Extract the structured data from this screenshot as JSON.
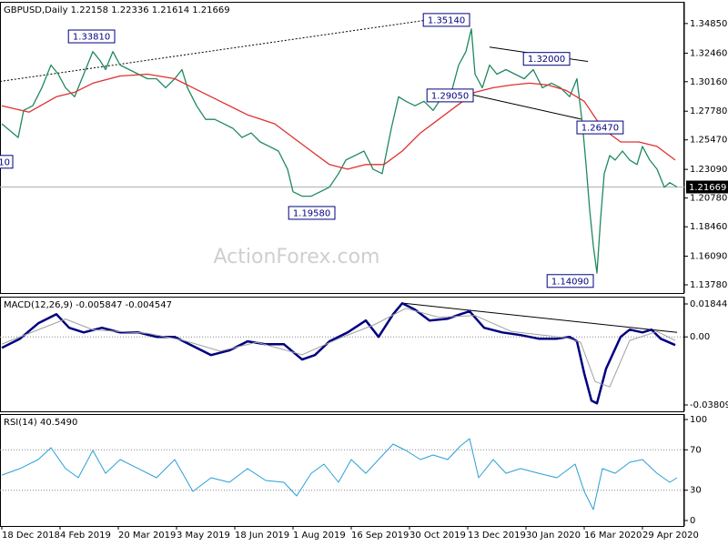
{
  "chart_data": [
    {
      "type": "line",
      "title": "GBPUSD,Daily 1.22158 1.22336 1.21614 1.21669",
      "xlim": [
        -1,
        375
      ],
      "ylim": [
        1.366,
        1.1312
      ],
      "yticks": [
        {
          "value": 1.3485,
          "label": "1.34850"
        },
        {
          "value": 1.3246,
          "label": "1.32460"
        },
        {
          "value": 1.3016,
          "label": "1.30160"
        },
        {
          "value": 1.2778,
          "label": "1.27780"
        },
        {
          "value": 1.2547,
          "label": "1.25470"
        },
        {
          "value": 1.2309,
          "label": "1.23090"
        },
        {
          "value": 1.2078,
          "label": "1.20780"
        },
        {
          "value": 1.1846,
          "label": "1.18460"
        },
        {
          "value": 1.1609,
          "label": "1.16090"
        },
        {
          "value": 1.1378,
          "label": "1.13780"
        }
      ],
      "series": [
        {
          "color": "#1e8a5e",
          "x": [
            0,
            9,
            12,
            17,
            22,
            27,
            31,
            35,
            40,
            45,
            50,
            54,
            57,
            61,
            65,
            70,
            75,
            80,
            85,
            90,
            95,
            99,
            102,
            107,
            112,
            117,
            122,
            127,
            132,
            137,
            142,
            147,
            152,
            157,
            160,
            165,
            170,
            175,
            180,
            185,
            189,
            194,
            199,
            204,
            209,
            214,
            218,
            222,
            227,
            232,
            237,
            242,
            247,
            251,
            255,
            258,
            260,
            264,
            268,
            272,
            277,
            282,
            287,
            292,
            297,
            302,
            307,
            312,
            316,
            319,
            321,
            323,
            325,
            327,
            329,
            331,
            334,
            337,
            341,
            345,
            349,
            352,
            356,
            360,
            364,
            367,
            371
          ],
          "values": [
            1.2676,
            1.2566,
            1.2785,
            1.2822,
            1.2967,
            1.315,
            1.3077,
            1.2967,
            1.2895,
            1.3077,
            1.3259,
            1.3186,
            1.3113,
            1.3259,
            1.315,
            1.3113,
            1.3077,
            1.304,
            1.304,
            1.2967,
            1.304,
            1.3113,
            1.2967,
            1.2822,
            1.2712,
            1.2712,
            1.2676,
            1.2639,
            1.2566,
            1.2603,
            1.253,
            1.2494,
            1.2457,
            1.2311,
            1.2129,
            1.2093,
            1.2093,
            1.2129,
            1.2165,
            1.2275,
            1.2384,
            1.2421,
            1.2457,
            1.2311,
            1.2275,
            1.2639,
            1.2895,
            1.2858,
            1.2822,
            1.2858,
            1.2785,
            1.2895,
            1.2931,
            1.315,
            1.3259,
            1.3441,
            1.3077,
            1.2967,
            1.315,
            1.3077,
            1.3113,
            1.3077,
            1.304,
            1.3113,
            1.2967,
            1.3004,
            1.2967,
            1.2895,
            1.304,
            1.2676,
            1.2348,
            1.1983,
            1.1692,
            1.1473,
            1.191,
            1.2275,
            1.2421,
            1.2384,
            1.2457,
            1.2384,
            1.2348,
            1.2494,
            1.2384,
            1.2311,
            1.2165,
            1.2202,
            1.2167
          ]
        },
        {
          "color": "#e03030",
          "x": [
            0,
            15,
            30,
            40,
            50,
            65,
            80,
            95,
            105,
            120,
            135,
            150,
            160,
            170,
            180,
            190,
            200,
            210,
            220,
            230,
            240,
            250,
            260,
            270,
            280,
            290,
            300,
            310,
            320,
            330,
            340,
            350,
            360,
            370
          ],
          "values": [
            1.2822,
            1.2771,
            1.2895,
            1.2931,
            1.3004,
            1.3062,
            1.3077,
            1.304,
            1.2967,
            1.2858,
            1.2749,
            1.2676,
            1.2566,
            1.2457,
            1.2348,
            1.2311,
            1.2348,
            1.2348,
            1.2457,
            1.2603,
            1.2712,
            1.2822,
            1.2931,
            1.2967,
            1.2989,
            1.3004,
            1.2989,
            1.2946,
            1.2858,
            1.2639,
            1.253,
            1.253,
            1.2494,
            1.2384
          ]
        }
      ],
      "last_price": {
        "value": 1.21669,
        "label": "1.21669"
      },
      "annotations": [
        {
          "text": "1.33810",
          "x": 62,
          "y": 1.3381,
          "side": "right"
        },
        {
          "text": "1.35140",
          "x": 257,
          "y": 1.3514,
          "side": "right"
        },
        {
          "text": "1.32000",
          "x": 312,
          "y": 1.32,
          "side": "right"
        },
        {
          "text": "1.29050",
          "x": 259,
          "y": 1.2905,
          "side": "right"
        },
        {
          "text": "1.26470",
          "x": 316,
          "y": 1.2647,
          "side": "left"
        },
        {
          "text": "1.19580",
          "x": 183,
          "y": 1.1958,
          "side": "right"
        },
        {
          "text": "1.14090",
          "x": 325,
          "y": 1.1409,
          "side": "right"
        },
        {
          "text": "10",
          "x": 6,
          "y": 1.237,
          "side": "right"
        }
      ],
      "trendlines": [
        {
          "x": [
            -1,
            234
          ],
          "y": [
            1.3018,
            1.3514
          ],
          "style": "dotted"
        },
        {
          "x": [
            268,
            322
          ],
          "y": [
            1.3295,
            1.3179
          ],
          "style": "solid"
        },
        {
          "x": [
            259,
            319
          ],
          "y": [
            1.2909,
            1.2712
          ],
          "style": "solid"
        }
      ],
      "watermark": "ActionForex.com"
    },
    {
      "type": "line",
      "title": "MACD(12,26,9) -0.005847 -0.004547",
      "xlim": [
        -1,
        375
      ],
      "ylim": [
        0.02252,
        -0.04166
      ],
      "yticks": [
        0.018442,
        {
          "value": 0,
          "label": "0.00"
        },
        -0.038095
      ],
      "levels": [
        0
      ],
      "series": [
        {
          "color": "#000080",
          "width": 2.5,
          "x": [
            0,
            10,
            20,
            30,
            37,
            45,
            55,
            65,
            75,
            85,
            95,
            105,
            115,
            125,
            135,
            145,
            155,
            165,
            172,
            180,
            190,
            200,
            207,
            215,
            220,
            227,
            235,
            245,
            252,
            257,
            265,
            275,
            285,
            295,
            305,
            312,
            316,
            320,
            324,
            327,
            332,
            340,
            345,
            352,
            357,
            362,
            370
          ],
          "values": [
            -0.0061,
            -0.001,
            0.0076,
            0.0127,
            0.0051,
            0.0025,
            0.0051,
            0.0025,
            0.0025,
            0,
            0,
            -0.0051,
            -0.0102,
            -0.0076,
            -0.0025,
            -0.0041,
            -0.0041,
            -0.0127,
            -0.0102,
            -0.0025,
            0.0025,
            0.0092,
            0,
            0.0127,
            0.0188,
            0.0153,
            0.0092,
            0.0102,
            0.0127,
            0.0143,
            0.0051,
            0.0025,
            0.001,
            -0.001,
            -0.001,
            0,
            -0.0025,
            -0.0204,
            -0.0357,
            -0.0372,
            -0.0178,
            0,
            0.0041,
            0.0025,
            0.0041,
            -0.001,
            -0.0046
          ]
        },
        {
          "color": "#a0a0a0",
          "width": 1,
          "x": [
            0,
            20,
            35,
            50,
            80,
            100,
            120,
            140,
            165,
            185,
            205,
            222,
            240,
            260,
            280,
            310,
            318,
            326,
            334,
            345,
            360,
            370
          ],
          "values": [
            -0.004,
            0.004,
            0.01,
            0.004,
            0.002,
            -0.002,
            -0.008,
            -0.003,
            -0.01,
            -0.001,
            0.007,
            0.016,
            0.011,
            0.012,
            0.003,
            -0.0005,
            -0.003,
            -0.025,
            -0.028,
            -0.002,
            0.003,
            -0.002
          ]
        }
      ],
      "trendlines": [
        {
          "x": [
            221,
            371
          ],
          "y": [
            0.0188,
            0.0025
          ],
          "style": "solid"
        }
      ]
    },
    {
      "type": "line",
      "title": "RSI(14) 40.5490",
      "xlim": [
        -1,
        375
      ],
      "ylim": [
        105.4,
        -5.4
      ],
      "yticks": [
        100,
        70,
        30,
        0
      ],
      "levels": [
        70,
        30
      ],
      "xticks": [
        {
          "value": 0,
          "label": "18 Dec 2018"
        },
        {
          "value": 32,
          "label": "4 Feb 2019"
        },
        {
          "value": 64,
          "label": "20 Mar 2019"
        },
        {
          "value": 96,
          "label": "3 May 2019"
        },
        {
          "value": 128,
          "label": "18 Jun 2019"
        },
        {
          "value": 160,
          "label": "1 Aug 2019"
        },
        {
          "value": 192,
          "label": "16 Sep 2019"
        },
        {
          "value": 224,
          "label": "30 Oct 2019"
        },
        {
          "value": 256,
          "label": "13 Dec 2019"
        },
        {
          "value": 288,
          "label": "30 Jan 2020"
        },
        {
          "value": 320,
          "label": "16 Mar 2020"
        },
        {
          "value": 352,
          "label": "29 Apr 2020"
        }
      ],
      "series": [
        {
          "color": "#2a9fd6",
          "width": 1,
          "x": [
            0,
            10,
            20,
            27,
            35,
            42,
            50,
            57,
            65,
            75,
            85,
            95,
            105,
            115,
            125,
            135,
            145,
            155,
            162,
            170,
            177,
            185,
            192,
            200,
            207,
            215,
            222,
            230,
            237,
            245,
            252,
            257,
            262,
            270,
            277,
            285,
            295,
            305,
            315,
            320,
            325,
            330,
            337,
            345,
            352,
            360,
            367,
            371
          ],
          "values": [
            45,
            51.4,
            60.4,
            72.1,
            51.4,
            42.3,
            69.4,
            46.8,
            60.4,
            51.4,
            42.3,
            60.4,
            28.8,
            42.3,
            37.8,
            51.4,
            39.6,
            37.8,
            24.3,
            46.8,
            55.9,
            37.8,
            60.4,
            46.8,
            60.4,
            75.7,
            69.4,
            60.4,
            64.9,
            60.4,
            73.9,
            81.1,
            42.3,
            60.4,
            46.8,
            51.4,
            46.8,
            42.3,
            55.9,
            28.8,
            10.8,
            51.4,
            46.8,
            57.7,
            60.4,
            46.8,
            37.8,
            42.3
          ]
        }
      ]
    }
  ]
}
